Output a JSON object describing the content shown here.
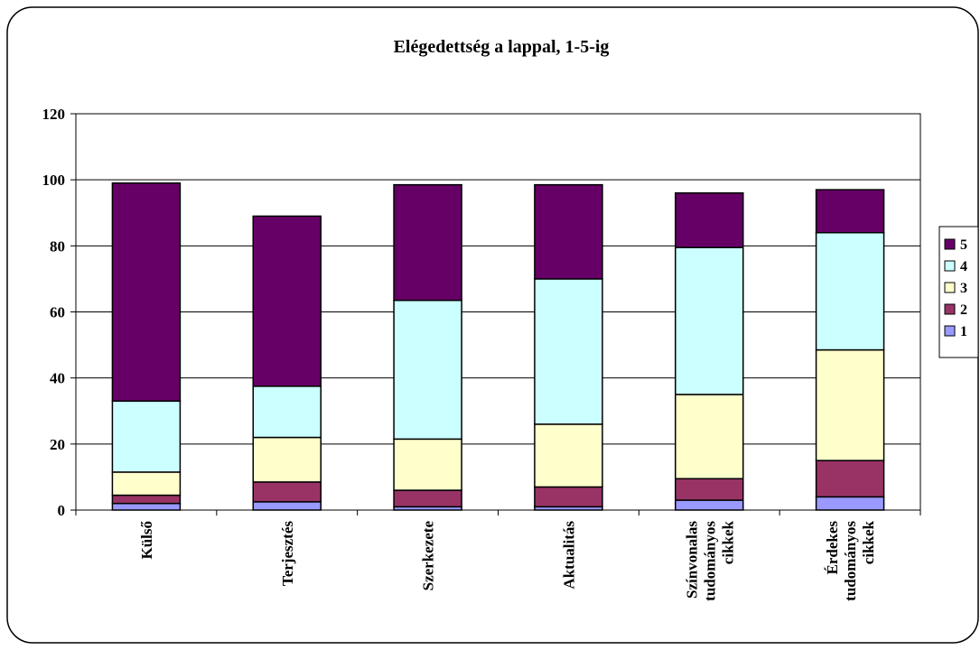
{
  "chart_data": {
    "type": "bar",
    "stacked": true,
    "title": "Elégedettség a lappal, 1-5-ig",
    "xlabel": "",
    "ylabel": "",
    "ylim": [
      0,
      120
    ],
    "yticks": [
      0,
      20,
      40,
      60,
      80,
      100,
      120
    ],
    "grid": true,
    "legend_position": "right",
    "categories": [
      [
        "Külső"
      ],
      [
        "Terjesztés"
      ],
      [
        "Szerkezete"
      ],
      [
        "Aktualitás"
      ],
      [
        "Színvonalas",
        "tudományos",
        "cikkek"
      ],
      [
        "Érdekes",
        "tudományos",
        "cikkek"
      ]
    ],
    "series": [
      {
        "name": "1",
        "color": "#9999ff",
        "values": [
          2,
          2.5,
          1,
          1,
          3,
          4
        ]
      },
      {
        "name": "2",
        "color": "#993366",
        "values": [
          2.5,
          6,
          5,
          6,
          6.5,
          11
        ]
      },
      {
        "name": "3",
        "color": "#ffffcc",
        "values": [
          7,
          13.5,
          15.5,
          19,
          25.5,
          33.5
        ]
      },
      {
        "name": "4",
        "color": "#ccffff",
        "values": [
          21.5,
          15.5,
          42,
          44,
          44.5,
          35.5
        ]
      },
      {
        "name": "5",
        "color": "#660066",
        "values": [
          66,
          51.5,
          35,
          28.5,
          16.5,
          13
        ]
      }
    ]
  }
}
